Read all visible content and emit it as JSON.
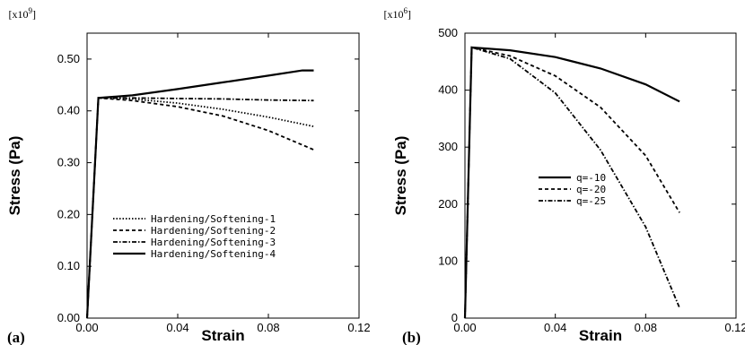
{
  "chart_data": [
    {
      "type": "line",
      "panel_label": "(a)",
      "xlabel": "Strain",
      "ylabel": "Stress (Pa)",
      "y_multiplier": "[x10",
      "y_multiplier_exp": "9",
      "y_multiplier_close": "]",
      "xlim": [
        0,
        0.12
      ],
      "ylim": [
        0,
        0.55
      ],
      "x_ticks": [
        0.0,
        0.04,
        0.08,
        0.12
      ],
      "x_tick_labels": [
        "0.00",
        "0.04",
        "0.08",
        "0.12"
      ],
      "y_ticks": [
        0.0,
        0.1,
        0.2,
        0.3,
        0.4,
        0.5
      ],
      "y_tick_labels": [
        "0.00",
        "0.10",
        "0.20",
        "0.30",
        "0.40",
        "0.50"
      ],
      "legend_position": "lower-left",
      "series": [
        {
          "name": "Hardening/Softening-1",
          "dash": "dotted",
          "x": [
            0,
            0.005,
            0.02,
            0.04,
            0.06,
            0.08,
            0.1
          ],
          "y": [
            0,
            0.425,
            0.423,
            0.415,
            0.403,
            0.388,
            0.37
          ]
        },
        {
          "name": "Hardening/Softening-2",
          "dash": "dashed",
          "x": [
            0,
            0.005,
            0.02,
            0.04,
            0.06,
            0.08,
            0.1
          ],
          "y": [
            0,
            0.425,
            0.42,
            0.408,
            0.39,
            0.362,
            0.325
          ]
        },
        {
          "name": "Hardening/Softening-3",
          "dash": "dashdot",
          "x": [
            0,
            0.005,
            0.02,
            0.04,
            0.06,
            0.08,
            0.1
          ],
          "y": [
            0,
            0.425,
            0.425,
            0.424,
            0.423,
            0.421,
            0.42
          ]
        },
        {
          "name": "Hardening/Softening-4",
          "dash": "solid",
          "x": [
            0,
            0.005,
            0.02,
            0.04,
            0.06,
            0.08,
            0.095,
            0.1
          ],
          "y": [
            0,
            0.425,
            0.43,
            0.442,
            0.455,
            0.468,
            0.478,
            0.478
          ]
        }
      ]
    },
    {
      "type": "line",
      "panel_label": "(b)",
      "xlabel": "Strain",
      "ylabel": "Stress (Pa)",
      "y_multiplier": "[x10",
      "y_multiplier_exp": "6",
      "y_multiplier_close": "]",
      "xlim": [
        0,
        0.12
      ],
      "ylim": [
        0,
        500
      ],
      "x_ticks": [
        0.0,
        0.04,
        0.08,
        0.12
      ],
      "x_tick_labels": [
        "0.00",
        "0.04",
        "0.08",
        "0.12"
      ],
      "y_ticks": [
        0,
        100,
        200,
        300,
        400,
        500
      ],
      "y_tick_labels": [
        "0",
        "100",
        "200",
        "300",
        "400",
        "500"
      ],
      "legend_position": "center",
      "series": [
        {
          "name": "q=-10",
          "dash": "solid",
          "x": [
            0,
            0.003,
            0.02,
            0.04,
            0.06,
            0.08,
            0.095
          ],
          "y": [
            0,
            475,
            470,
            458,
            438,
            410,
            380
          ]
        },
        {
          "name": "q=-20",
          "dash": "dashed",
          "x": [
            0,
            0.003,
            0.02,
            0.04,
            0.06,
            0.08,
            0.095
          ],
          "y": [
            0,
            475,
            460,
            425,
            370,
            285,
            185
          ]
        },
        {
          "name": "q=-25",
          "dash": "dashdot",
          "x": [
            0,
            0.003,
            0.02,
            0.04,
            0.06,
            0.08,
            0.095
          ],
          "y": [
            0,
            475,
            455,
            395,
            295,
            160,
            18
          ]
        }
      ]
    }
  ]
}
